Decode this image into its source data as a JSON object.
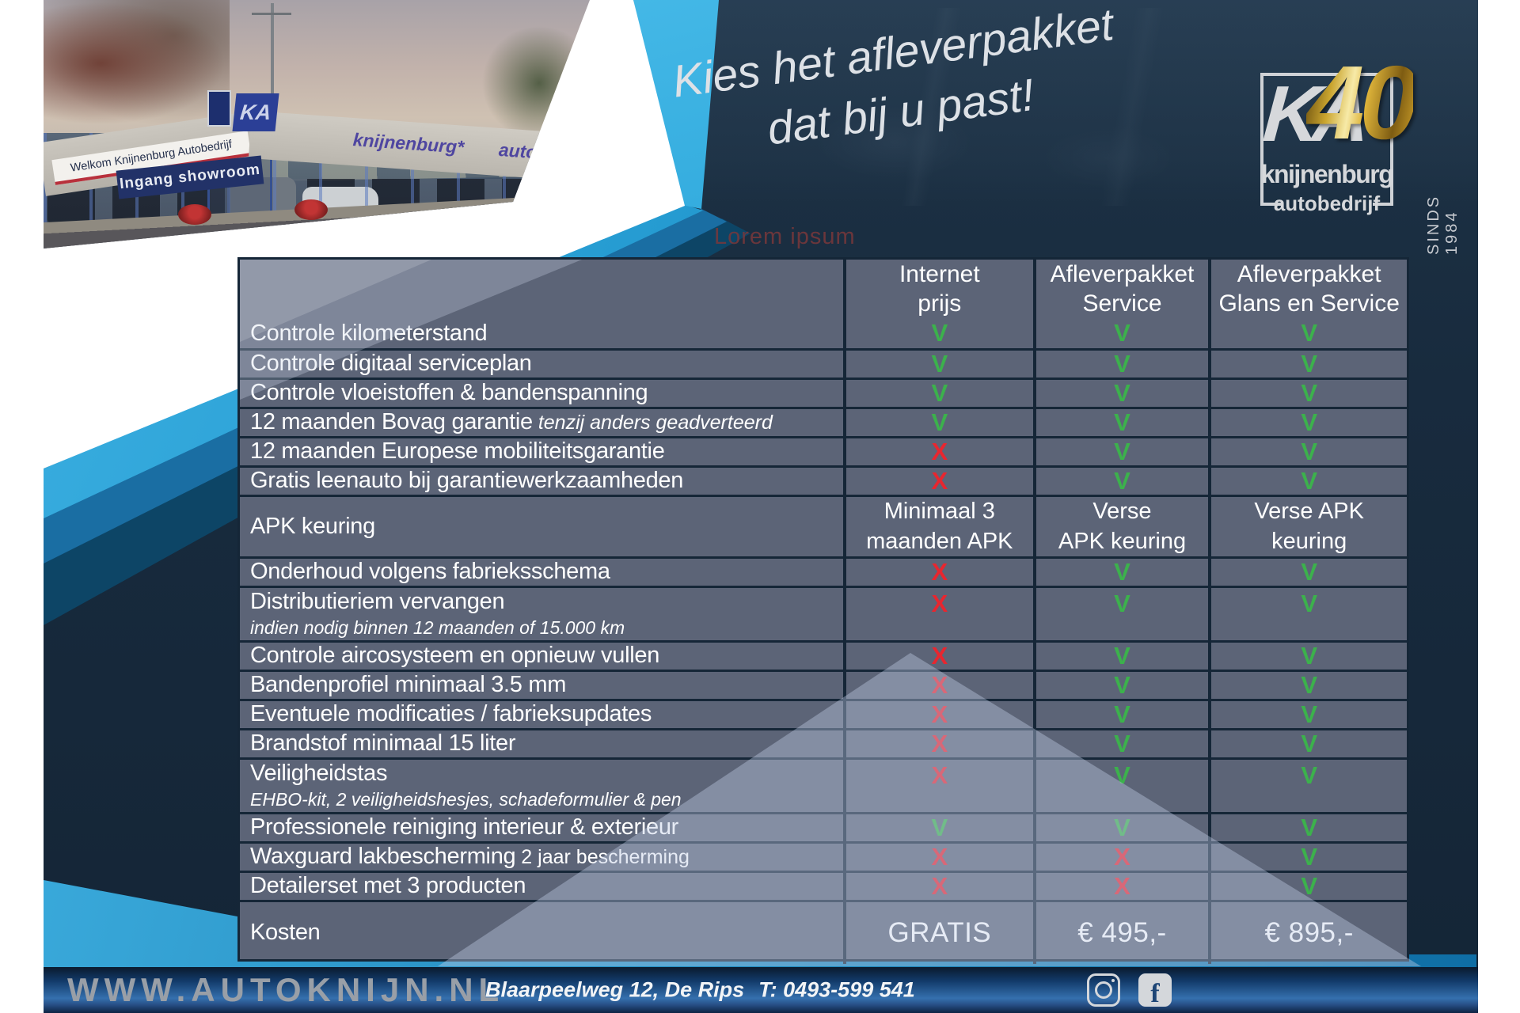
{
  "page": {
    "tagline_line1": "Kies het afleverpakket",
    "tagline_line2": "dat bij u past!",
    "watermark": "Lorem ipsum"
  },
  "logo": {
    "monogram": "KA",
    "anniversary": "40",
    "name": "knijnenburg",
    "subtitle": "autobedrijf",
    "since": "SINDS 1984"
  },
  "photo": {
    "welcome_sign": "Welkom Knijnenburg Autobedrijf",
    "corner_logo": "KA",
    "fascia_name": "knijnenburg*",
    "fascia_sub": "autobedrijf",
    "entrance_sign": "Ingang showroom"
  },
  "table": {
    "header": [
      {
        "line1": "Internet",
        "line2": "prijs"
      },
      {
        "line1": "Afleverpakket",
        "line2": "Service"
      },
      {
        "line1": "Afleverpakket",
        "line2": "Glans en Service"
      }
    ],
    "check_symbol": "V",
    "cross_symbol": "X",
    "rows": [
      {
        "label": "Controle kilometerstand",
        "values": [
          "V",
          "V",
          "V"
        ]
      },
      {
        "label": "Controle digitaal serviceplan",
        "values": [
          "V",
          "V",
          "V"
        ]
      },
      {
        "label": "Controle vloeistoffen & bandenspanning",
        "values": [
          "V",
          "V",
          "V"
        ]
      },
      {
        "label": "12 maanden Bovag garantie",
        "suffix": "tenzij anders geadverteerd",
        "suffix_italic": true,
        "values": [
          "V",
          "V",
          "V"
        ]
      },
      {
        "label": "12 maanden Europese mobiliteitsgarantie",
        "values": [
          "X",
          "V",
          "V"
        ]
      },
      {
        "label": "Gratis leenauto bij garantiewerkzaamheden",
        "values": [
          "X",
          "V",
          "V"
        ]
      },
      {
        "label": "APK keuring",
        "kind": "apk",
        "values": [
          "Minimaal 3\nmaanden APK",
          "Verse\nAPK keuring",
          "Verse APK\nkeuring"
        ]
      },
      {
        "label": "Onderhoud volgens fabrieksschema",
        "values": [
          "X",
          "V",
          "V"
        ]
      },
      {
        "label": "Distributieriem vervangen",
        "sublabel": "indien nodig binnen 12 maanden of 15.000 km",
        "kind": "tall",
        "values": [
          "X",
          "V",
          "V"
        ]
      },
      {
        "label": "Controle aircosysteem en opnieuw vullen",
        "values": [
          "X",
          "V",
          "V"
        ]
      },
      {
        "label": "Bandenprofiel minimaal 3.5 mm",
        "values": [
          "X",
          "V",
          "V"
        ]
      },
      {
        "label": "Eventuele modificaties / fabrieksupdates",
        "values": [
          "X",
          "V",
          "V"
        ]
      },
      {
        "label": "Brandstof minimaal 15 liter",
        "values": [
          "X",
          "V",
          "V"
        ]
      },
      {
        "label": "Veiligheidstas",
        "sublabel": "EHBO-kit, 2 veiligheidshesjes, schadeformulier & pen",
        "kind": "tall",
        "values": [
          "X",
          "V",
          "V"
        ]
      },
      {
        "label": "Professionele reiniging interieur & exterieur",
        "values": [
          "V",
          "V",
          "V"
        ]
      },
      {
        "label": "Waxguard lakbescherming",
        "suffix": "2 jaar bescherming",
        "suffix_italic": false,
        "values": [
          "X",
          "X",
          "V"
        ]
      },
      {
        "label": "Detailerset met 3 producten",
        "values": [
          "X",
          "X",
          "V"
        ]
      },
      {
        "label": "Kosten",
        "kind": "price",
        "values": [
          "GRATIS",
          "€ 495,-",
          "€ 895,-"
        ]
      }
    ]
  },
  "footer": {
    "website": "WWW.AUTOKNIJN.NL",
    "address": "Blaarpeelweg 12, De Rips",
    "phone": "T: 0493-599 541",
    "facebook_glyph": "f",
    "icons": [
      "instagram-icon",
      "facebook-icon"
    ]
  },
  "colors": {
    "background_navy": "#17293c",
    "accent_cyan": "#1b9cd9",
    "table_cell_slate": "#5c6477",
    "table_border": "#152637",
    "check_green": "#3cb14c",
    "cross_red": "#e8262f",
    "gold": "#d9ae3c",
    "footer_blue": "#3570ae"
  }
}
